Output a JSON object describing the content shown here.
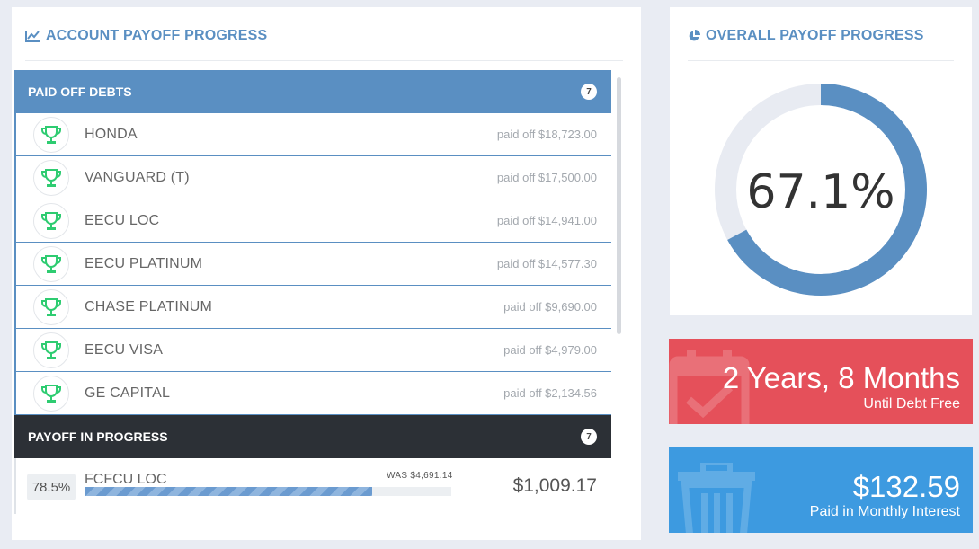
{
  "account_panel": {
    "title": "ACCOUNT PAYOFF PROGRESS",
    "icon": "line-chart-icon"
  },
  "paid_off": {
    "header": "PAID OFF DEBTS",
    "count": "7",
    "items": [
      {
        "name": "HONDA",
        "amount": "paid off $18,723.00",
        "icon": "trophy-icon"
      },
      {
        "name": "VANGUARD (T)",
        "amount": "paid off $17,500.00",
        "icon": "trophy-icon"
      },
      {
        "name": "EECU LOC",
        "amount": "paid off $14,941.00",
        "icon": "trophy-icon"
      },
      {
        "name": "EECU PLATINUM",
        "amount": "paid off $14,577.30",
        "icon": "trophy-icon"
      },
      {
        "name": "CHASE PLATINUM",
        "amount": "paid off $9,690.00",
        "icon": "trophy-icon"
      },
      {
        "name": "EECU VISA",
        "amount": "paid off $4,979.00",
        "icon": "trophy-icon"
      },
      {
        "name": "GE CAPITAL",
        "amount": "paid off $2,134.56",
        "icon": "trophy-icon"
      }
    ]
  },
  "in_progress": {
    "header": "PAYOFF IN PROGRESS",
    "count": "7",
    "items": [
      {
        "percent_label": "78.5%",
        "progress": 0.785,
        "name": "FCFCU LOC",
        "was": "WAS $4,691.14",
        "balance": "$1,009.17"
      }
    ]
  },
  "overall": {
    "title": "OVERALL PAYOFF PROGRESS",
    "icon": "pie-chart-icon",
    "percent_label": "67.1%",
    "progress": 0.671
  },
  "debt_free": {
    "value": "2 Years, 8 Months",
    "label": "Until Debt Free",
    "icon": "calendar-check-icon"
  },
  "interest": {
    "value": "$132.59",
    "label": "Paid in Monthly Interest",
    "icon": "trash-icon"
  },
  "colors": {
    "accent_blue": "#5a8fc2",
    "dark_header": "#2c3036",
    "red_card": "#e5505a",
    "blue_card": "#3d9ae0",
    "trophy_green": "#2ecc71",
    "donut_track": "#e8ebf2"
  }
}
